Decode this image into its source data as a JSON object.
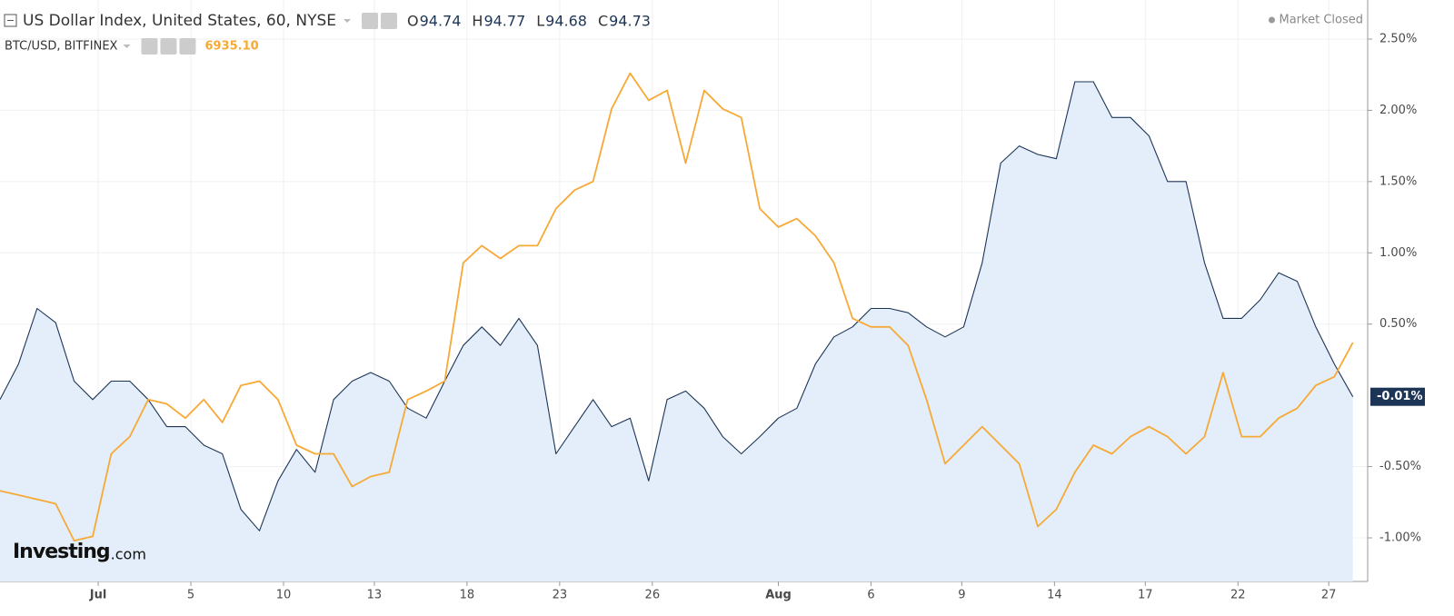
{
  "chart_data": {
    "type": "line",
    "status": "Market Closed",
    "ohlc": [
      {
        "label": "O",
        "value": 94.74
      },
      {
        "label": "H",
        "value": 94.77
      },
      {
        "label": "L",
        "value": 94.68
      },
      {
        "label": "C",
        "value": 94.73
      }
    ],
    "watermark": [
      "Investing",
      ".com"
    ],
    "x": [
      0,
      1,
      2,
      3,
      4,
      5,
      6,
      7,
      8,
      9,
      10,
      11,
      12,
      13,
      14,
      15,
      16,
      17,
      18,
      19,
      20,
      21,
      22,
      23,
      24,
      25,
      26,
      27,
      28,
      29,
      30,
      31,
      32,
      33,
      34,
      35,
      36,
      37,
      38,
      39,
      40,
      41,
      42,
      43,
      44,
      45,
      46,
      47,
      48,
      49,
      50,
      51,
      52,
      53,
      54,
      55,
      56,
      57,
      58,
      59,
      60,
      61,
      62,
      63,
      64,
      65,
      66,
      67,
      68,
      69,
      70,
      71,
      72,
      73
    ],
    "xlim": [
      0,
      73.8
    ],
    "xticks": [
      {
        "value": 5.3,
        "label": "Jul"
      },
      {
        "value": 10.3,
        "label": "5"
      },
      {
        "value": 15.3,
        "label": "10"
      },
      {
        "value": 20.2,
        "label": "13"
      },
      {
        "value": 25.2,
        "label": "18"
      },
      {
        "value": 30.2,
        "label": "23"
      },
      {
        "value": 35.2,
        "label": "26"
      },
      {
        "value": 42.0,
        "label": "Aug"
      },
      {
        "value": 47.0,
        "label": "6"
      },
      {
        "value": 51.9,
        "label": "9"
      },
      {
        "value": 56.9,
        "label": "14"
      },
      {
        "value": 61.8,
        "label": "17"
      },
      {
        "value": 66.8,
        "label": "22"
      },
      {
        "value": 71.7,
        "label": "27"
      }
    ],
    "ylim": [
      -1.306,
      2.774
    ],
    "yticks": [
      {
        "value": -1.0,
        "label": "-1.00%"
      },
      {
        "value": -0.5,
        "label": "-0.50%"
      },
      {
        "value": 0.5,
        "label": "0.50%"
      },
      {
        "value": 1.0,
        "label": "1.00%"
      },
      {
        "value": 1.5,
        "label": "1.50%"
      },
      {
        "value": 2.0,
        "label": "2.00%"
      },
      {
        "value": 2.5,
        "label": "2.50%"
      }
    ],
    "grid": true,
    "series": [
      {
        "name": "US Dollar Index, United States, 60, NYSE",
        "color": "#1c3557",
        "fill": "#e3eefa",
        "last_label": "-0.01%",
        "values": [
          -0.03,
          0.22,
          0.61,
          0.51,
          0.1,
          -0.03,
          0.1,
          0.1,
          -0.03,
          -0.22,
          -0.22,
          -0.35,
          -0.41,
          -0.8,
          -0.95,
          -0.6,
          -0.38,
          -0.54,
          -0.03,
          0.1,
          0.16,
          0.1,
          -0.09,
          -0.16,
          0.1,
          0.35,
          0.48,
          0.35,
          0.54,
          0.35,
          -0.41,
          -0.22,
          -0.03,
          -0.22,
          -0.16,
          -0.6,
          -0.03,
          0.03,
          -0.09,
          -0.29,
          -0.41,
          -0.29,
          -0.16,
          -0.09,
          0.22,
          0.41,
          0.48,
          0.61,
          0.61,
          0.58,
          0.48,
          0.41,
          0.48,
          0.93,
          1.63,
          1.75,
          1.69,
          1.66,
          2.2,
          2.2,
          1.95,
          1.95,
          1.82,
          1.5,
          1.5,
          0.93,
          0.54,
          0.54,
          0.67,
          0.86,
          0.8,
          0.48,
          0.22,
          -0.01
        ]
      },
      {
        "name": "BTC/USD, BITFINEX",
        "color": "#f7a935",
        "last_value": "6935.10",
        "values": [
          -0.67,
          -0.7,
          -0.73,
          -0.76,
          -1.02,
          -0.99,
          -0.41,
          -0.29,
          -0.03,
          -0.06,
          -0.16,
          -0.03,
          -0.19,
          0.07,
          0.1,
          -0.03,
          -0.35,
          -0.41,
          -0.41,
          -0.64,
          -0.57,
          -0.54,
          -0.03,
          0.03,
          0.1,
          0.93,
          1.05,
          0.96,
          1.05,
          1.05,
          1.31,
          1.44,
          1.5,
          2.01,
          2.26,
          2.07,
          2.14,
          1.63,
          2.14,
          2.01,
          1.95,
          1.31,
          1.18,
          1.24,
          1.12,
          0.93,
          0.54,
          0.48,
          0.48,
          0.35,
          -0.03,
          -0.48,
          -0.35,
          -0.22,
          -0.35,
          -0.48,
          -0.92,
          -0.8,
          -0.54,
          -0.35,
          -0.41,
          -0.29,
          -0.22,
          -0.29,
          -0.41,
          -0.29,
          0.16,
          -0.29,
          -0.29,
          -0.16,
          -0.09,
          0.07,
          0.13,
          0.37
        ]
      }
    ]
  }
}
